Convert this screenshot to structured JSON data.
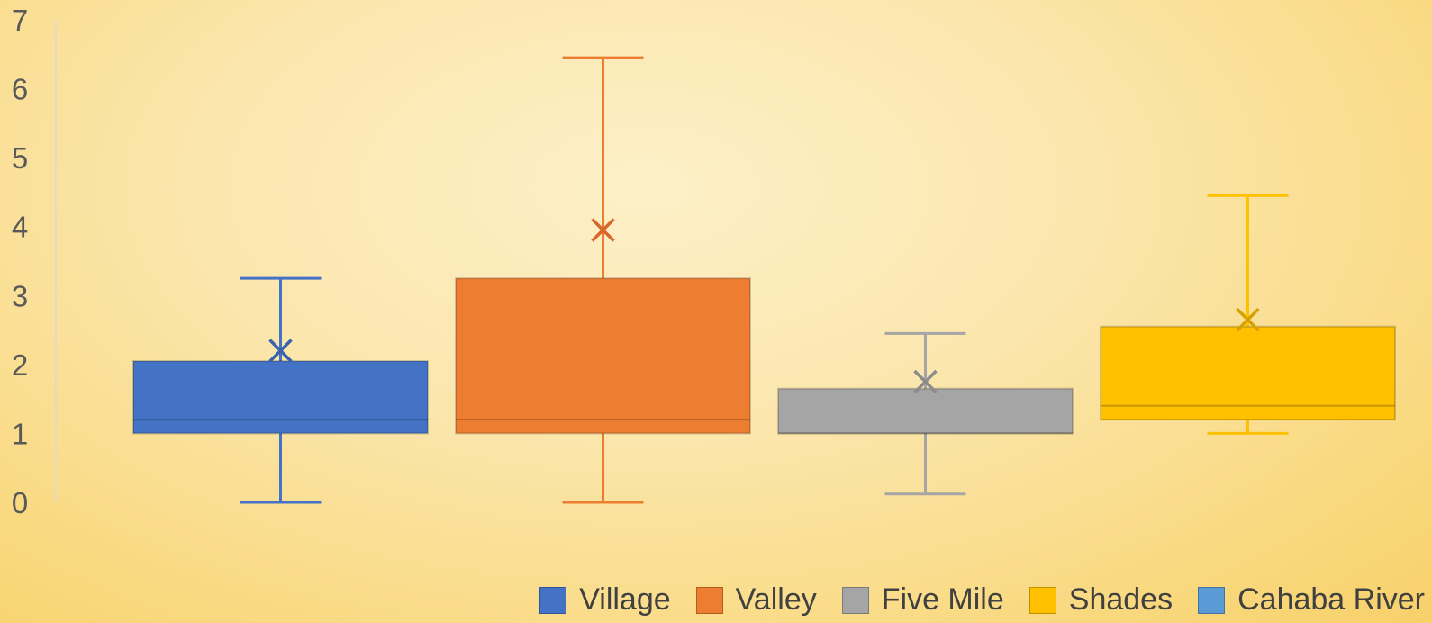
{
  "chart_data": {
    "type": "boxplot",
    "title": "",
    "xlabel": "",
    "ylabel": "",
    "ylim": [
      0,
      7
    ],
    "yticks": [
      0,
      1,
      2,
      3,
      4,
      5,
      6,
      7
    ],
    "grid": false,
    "legend_position": "bottom-right",
    "series": [
      {
        "name": "Village",
        "color": "#4472C4",
        "whisker_low": 0,
        "q1": 1.0,
        "median": 1.2,
        "q3": 2.05,
        "whisker_high": 3.25,
        "mean": 2.2
      },
      {
        "name": "Valley",
        "color": "#ED7D31",
        "whisker_low": 0,
        "q1": 1.0,
        "median": 1.2,
        "q3": 3.25,
        "whisker_high": 6.45,
        "mean": 3.95
      },
      {
        "name": "Five Mile",
        "color": "#A5A5A5",
        "whisker_low": 0.12,
        "q1": 1.0,
        "median": 1.0,
        "q3": 1.65,
        "whisker_high": 2.45,
        "mean": 1.75
      },
      {
        "name": "Shades",
        "color": "#FFC000",
        "whisker_low": 1.0,
        "q1": 1.2,
        "median": 1.4,
        "q3": 2.55,
        "whisker_high": 4.45,
        "mean": 2.65
      },
      {
        "name": "Cahaba River",
        "color": "#5B9BD5"
      }
    ]
  }
}
